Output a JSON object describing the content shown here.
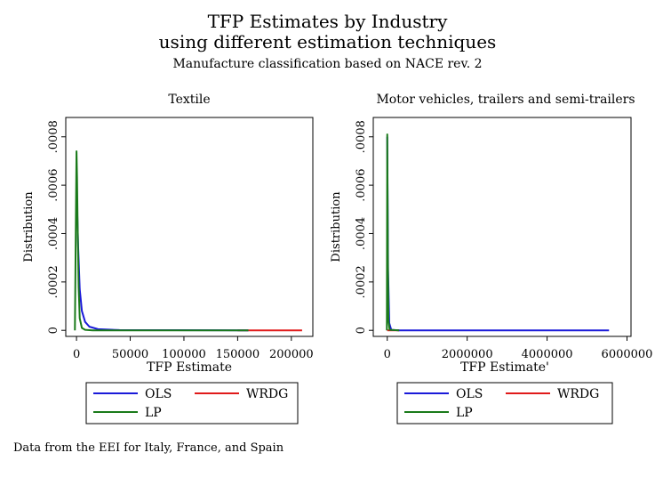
{
  "title_line1": "TFP Estimates by Industry",
  "title_line2": "using different estimation techniques",
  "subtitle": "Manufacture classification based on NACE rev. 2",
  "note": "Data from the EEI for Italy, France, and Spain",
  "colors": {
    "OLS": "#1a1ad9",
    "WRDG": "#e01a1a",
    "LP": "#1a7a1a"
  },
  "chart_data": [
    {
      "type": "line",
      "title": "Textile",
      "xlabel": "TFP Estimate",
      "ylabel": "Distribution",
      "xticks": [
        0,
        50000,
        100000,
        150000,
        200000
      ],
      "xtick_labels": [
        "0",
        "50000",
        "100000",
        "150000",
        "200000"
      ],
      "yticks": [
        0,
        0.0002,
        0.0004,
        0.0006,
        0.0008
      ],
      "ytick_labels": [
        "0",
        ".0002",
        ".0004",
        ".0006",
        ".0008"
      ],
      "xlim": [
        -10000,
        220000
      ],
      "ylim": [
        -2.5e-05,
        0.00088
      ],
      "legend": [
        "OLS",
        "WRDG",
        "LP"
      ],
      "legend_position": "bottom",
      "grid": false,
      "series": [
        {
          "name": "OLS",
          "x": [
            0,
            1500,
            3000,
            5000,
            8000,
            12000,
            20000,
            40000,
            160000
          ],
          "y": [
            0.0006,
            0.00035,
            0.00017,
            8e-05,
            3.5e-05,
            1.5e-05,
            5e-06,
            1e-06,
            0.0
          ]
        },
        {
          "name": "WRDG",
          "x": [
            150000,
            175000,
            210000
          ],
          "y": [
            0.0,
            0.0,
            0.0
          ]
        },
        {
          "name": "LP",
          "x": [
            -1500,
            0,
            500,
            1000,
            2000,
            3000,
            5000,
            8000,
            15000,
            160000
          ],
          "y": [
            0.0,
            0.00074,
            0.00063,
            0.00045,
            0.00018,
            5e-05,
            1e-05,
            2e-06,
            0.0,
            0.0
          ]
        }
      ]
    },
    {
      "type": "line",
      "title": "Motor vehicles, trailers and semi-trailers",
      "xlabel": "TFP Estimate'",
      "ylabel": "Distribution",
      "xticks": [
        0,
        2000000,
        4000000,
        6000000
      ],
      "xtick_labels": [
        "0",
        "2000000",
        "4000000",
        "6000000"
      ],
      "yticks": [
        0,
        0.0002,
        0.0004,
        0.0006,
        0.0008
      ],
      "ytick_labels": [
        "0",
        ".0002",
        ".0004",
        ".0006",
        ".0008"
      ],
      "xlim": [
        -350000,
        6100000
      ],
      "ylim": [
        -2.5e-05,
        0.00088
      ],
      "legend": [
        "OLS",
        "WRDG",
        "LP"
      ],
      "legend_position": "bottom",
      "grid": false,
      "series": [
        {
          "name": "OLS",
          "x": [
            0,
            20000,
            50000,
            100000,
            300000,
            5550000
          ],
          "y": [
            0.0008,
            0.00025,
            3e-05,
            2e-06,
            0.0,
            0.0
          ]
        },
        {
          "name": "WRDG",
          "x": [
            0,
            300000
          ],
          "y": [
            0.0,
            0.0
          ]
        },
        {
          "name": "LP",
          "x": [
            -10000,
            0,
            15000,
            30000,
            60000,
            300000
          ],
          "y": [
            0.0,
            0.00081,
            0.0003,
            4e-05,
            2e-06,
            0.0
          ]
        }
      ]
    }
  ]
}
